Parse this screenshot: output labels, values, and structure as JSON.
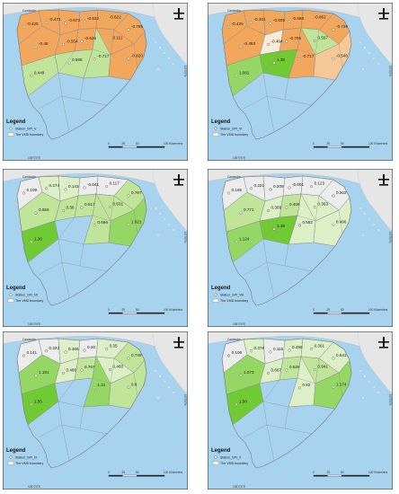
{
  "colors": {
    "sea": "#a7d3ef",
    "land": "#e6e6e6",
    "boundary": "#8f8f8f",
    "v_low": "#f2a75c",
    "low": "#f6c896",
    "neutral": "#f8ecd8",
    "grey": "#ececec",
    "pale_green": "#dcefc6",
    "light_green": "#bfe49a",
    "mid_green": "#95d765",
    "bright_green": "#6fca34"
  },
  "common": {
    "country_label": "Cambodia",
    "legend_title": "Legend",
    "boundary_label": "The VMD boundary",
    "scale_ticks": [
      "0",
      "25",
      "50",
      "100 Kilometers"
    ],
    "lon_label": "105°0'0\"E",
    "lat_label": "10°0'0\"N",
    "north_icon": "north-arrow"
  },
  "panels": [
    {
      "station_label": "Station_SPI_V",
      "values": [
        "-0.425",
        "-0.474",
        "-0.673",
        "-0.532",
        "-0.622",
        "-0.795",
        "-0.48",
        "-0.554",
        "-0.626",
        "0.111",
        "-0.717",
        "-0.820",
        "0.449",
        "0.595"
      ],
      "colors": [
        "v_low",
        "v_low",
        "v_low",
        "v_low",
        "v_low",
        "v_low",
        "v_low",
        "v_low",
        "v_low",
        "v_low",
        "light_green",
        "v_low",
        "light_green",
        "light_green"
      ]
    },
    {
      "station_label": "Station_SPI_VI",
      "values": [
        "-0.426",
        "-0.401",
        "-0.605",
        "-0.588",
        "-0.862",
        "-0.739",
        "-0.493",
        "-0.464",
        "-0.706",
        "0.557",
        "-0.717",
        "-0.548",
        "1.081",
        "1.36"
      ],
      "colors": [
        "v_low",
        "v_low",
        "v_low",
        "v_low",
        "v_low",
        "v_low",
        "v_low",
        "neutral",
        "v_low",
        "light_green",
        "v_low",
        "low",
        "mid_green",
        "bright_green"
      ]
    },
    {
      "station_label": "Station_SPI_VII",
      "values": [
        "0.109",
        "0.274",
        "0.143",
        "-0.041",
        "0.117",
        "0.767",
        "0.656",
        "0.36",
        "0.517",
        "0.531",
        "0.666",
        "1.021",
        "1.36"
      ],
      "colors": [
        "grey",
        "pale_green",
        "pale_green",
        "grey",
        "grey",
        "light_green",
        "light_green",
        "light_green",
        "light_green",
        "light_green",
        "light_green",
        "mid_green",
        "bright_green"
      ]
    },
    {
      "station_label": "Station_SPI_VIII",
      "values": [
        "0.185",
        "0.221",
        "0.209",
        "-0.001",
        "0.123",
        "0.262",
        "0.771",
        "0.309",
        "0.406",
        "0.363",
        "0.552",
        "0.496",
        "1.124",
        "1.36"
      ],
      "colors": [
        "grey",
        "grey",
        "grey",
        "grey",
        "grey",
        "grey",
        "light_green",
        "pale_green",
        "light_green",
        "pale_green",
        "pale_green",
        "pale_green",
        "mid_green",
        "bright_green"
      ]
    },
    {
      "station_label": "Station_SPI_IX",
      "values": [
        "0.141",
        "0.223",
        "0.466",
        "0.26",
        "0.35",
        "0.749",
        "1.181",
        "0.486",
        "0.767",
        "0.460",
        "1.31",
        "0.8",
        "1.55"
      ],
      "colors": [
        "grey",
        "grey",
        "pale_green",
        "grey",
        "pale_green",
        "light_green",
        "mid_green",
        "pale_green",
        "light_green",
        "pale_green",
        "mid_green",
        "light_green",
        "bright_green"
      ]
    },
    {
      "station_label": "Station_SPI_X",
      "values": [
        "0.106",
        "0.378",
        "0.115",
        "0.498",
        "0.361",
        "0.541",
        "1.073",
        "0.667",
        "0.626",
        "0.941",
        "0.82",
        "1.174",
        "1.58"
      ],
      "colors": [
        "grey",
        "pale_green",
        "grey",
        "pale_green",
        "pale_green",
        "pale_green",
        "mid_green",
        "pale_green",
        "light_green",
        "light_green",
        "pale_green",
        "mid_green",
        "bright_green"
      ]
    }
  ]
}
